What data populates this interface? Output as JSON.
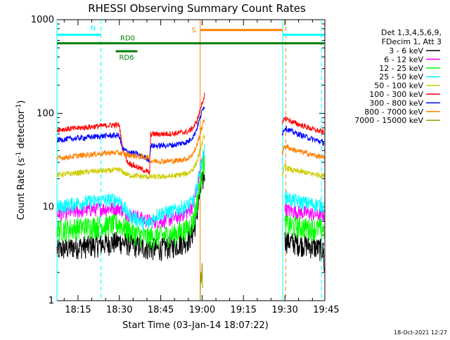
{
  "chart_data": {
    "type": "line",
    "title": "RHESSI Observing Summary Count Rates",
    "xlabel": "Start Time (03-Jan-14 18:07:22)",
    "ylabel_main": "Count Rate (s",
    "ylabel_sup1": "-1",
    "ylabel_mid": " detector",
    "ylabel_sup2": "-1",
    "ylabel_end": ")",
    "y_scale": "log",
    "ylim": [
      1,
      1000
    ],
    "y_ticks": [
      {
        "value": 1,
        "label": "1"
      },
      {
        "value": 10,
        "label": "10"
      },
      {
        "value": 100,
        "label": "100"
      },
      {
        "value": 1000,
        "label": "1000"
      }
    ],
    "x_range_minutes": [
      7.37,
      104.5
    ],
    "x_ticks": [
      {
        "minute": 15,
        "label": "18:15"
      },
      {
        "minute": 30,
        "label": "18:30"
      },
      {
        "minute": 45,
        "label": "18:45"
      },
      {
        "minute": 60,
        "label": "19:00"
      },
      {
        "minute": 75,
        "label": "19:15"
      },
      {
        "minute": 90,
        "label": "19:30"
      },
      {
        "minute": 105,
        "label": "19:45"
      }
    ],
    "legend_header": [
      "Det 1,3,4,5,6,9,",
      "FDecim 1, Att 3"
    ],
    "legend_position": "right",
    "series": [
      {
        "name": "3 - 6 keV",
        "color": "#000000",
        "segments": [
          [
            [
              7.4,
              3.5
            ],
            [
              14,
              3.8
            ],
            [
              20,
              3.9
            ],
            [
              27,
              4.2
            ],
            [
              30,
              4.3
            ],
            [
              33,
              4.1
            ],
            [
              36,
              3.9
            ],
            [
              40,
              3.7
            ],
            [
              44,
              3.6
            ],
            [
              50,
              3.9
            ],
            [
              55,
              4.5
            ],
            [
              57,
              5.6
            ],
            [
              58,
              8.0
            ],
            [
              59,
              13
            ],
            [
              60,
              18
            ],
            [
              61,
              24
            ]
          ],
          [
            [
              90,
              4.5
            ],
            [
              93,
              4.2
            ],
            [
              97,
              4.0
            ],
            [
              100,
              3.8
            ],
            [
              103,
              3.6
            ],
            [
              104,
              3.4
            ],
            [
              104.4,
              2.0
            ]
          ]
        ]
      },
      {
        "name": "6 - 12 keV",
        "color": "#ff00ff",
        "segments": [
          [
            [
              7.4,
              8.5
            ],
            [
              14,
              9.0
            ],
            [
              20,
              9.5
            ],
            [
              27,
              9.7
            ],
            [
              30,
              9.8
            ],
            [
              33,
              8.5
            ],
            [
              36,
              8.0
            ],
            [
              40,
              7.2
            ],
            [
              44,
              7.0
            ],
            [
              50,
              7.6
            ],
            [
              55,
              9.0
            ],
            [
              57,
              11
            ],
            [
              58,
              15
            ],
            [
              59,
              22
            ],
            [
              60,
              30
            ],
            [
              61,
              40
            ]
          ],
          [
            [
              90,
              9.5
            ],
            [
              93,
              9.0
            ],
            [
              97,
              8.7
            ],
            [
              100,
              8.5
            ],
            [
              103,
              8.3
            ],
            [
              104.3,
              8.2
            ]
          ]
        ]
      },
      {
        "name": "12 - 25 keV",
        "color": "#00ff00",
        "segments": [
          [
            [
              7.4,
              5.8
            ],
            [
              14,
              6.0
            ],
            [
              20,
              6.3
            ],
            [
              27,
              6.5
            ],
            [
              30,
              6.6
            ],
            [
              33,
              5.8
            ],
            [
              36,
              5.2
            ],
            [
              40,
              4.8
            ],
            [
              44,
              4.9
            ],
            [
              50,
              5.2
            ],
            [
              55,
              6.0
            ],
            [
              57,
              7.5
            ],
            [
              58,
              11
            ],
            [
              59,
              16
            ],
            [
              60,
              24
            ],
            [
              61,
              33
            ]
          ],
          [
            [
              90,
              6.6
            ],
            [
              93,
              6.3
            ],
            [
              97,
              6.1
            ],
            [
              100,
              6.0
            ],
            [
              103,
              5.9
            ],
            [
              104.3,
              5.8
            ]
          ]
        ]
      },
      {
        "name": "25 - 50 keV",
        "color": "#00ffff",
        "segments": [
          [
            [
              7.4,
              10
            ],
            [
              14,
              11
            ],
            [
              20,
              11.5
            ],
            [
              27,
              12
            ],
            [
              30,
              12
            ],
            [
              33,
              8.5
            ],
            [
              36,
              7.5
            ],
            [
              40,
              6.5
            ],
            [
              44,
              8.5
            ],
            [
              50,
              9.2
            ],
            [
              55,
              10.5
            ],
            [
              57,
              12
            ],
            [
              58,
              16
            ],
            [
              59,
              23
            ],
            [
              60,
              32
            ],
            [
              61,
              42
            ]
          ],
          [
            [
              90,
              13
            ],
            [
              93,
              11.8
            ],
            [
              97,
              11.2
            ],
            [
              100,
              10.8
            ],
            [
              103,
              10.5
            ],
            [
              104.3,
              10.3
            ]
          ]
        ]
      },
      {
        "name": "50 - 100 keV",
        "color": "#cccc00",
        "segments": [
          [
            [
              7.4,
              22
            ],
            [
              14,
              23
            ],
            [
              20,
              24
            ],
            [
              27,
              24.5
            ],
            [
              30,
              25
            ],
            [
              33,
              22
            ],
            [
              36,
              21.5
            ],
            [
              40,
              21
            ],
            [
              44,
              21
            ],
            [
              50,
              21.5
            ],
            [
              55,
              23
            ],
            [
              57,
              26
            ],
            [
              58,
              30
            ],
            [
              59,
              38
            ],
            [
              60,
              48
            ],
            [
              61,
              60
            ]
          ],
          [
            [
              89,
              22
            ],
            [
              90,
              27
            ],
            [
              93,
              24.5
            ],
            [
              97,
              23.5
            ],
            [
              100,
              22.5
            ],
            [
              103,
              22
            ],
            [
              104.3,
              21.5
            ]
          ]
        ]
      },
      {
        "name": "100 - 300 keV",
        "color": "#ff0000",
        "segments": [
          [
            [
              7.4,
              67
            ],
            [
              14,
              69
            ],
            [
              20,
              72
            ],
            [
              27,
              75
            ],
            [
              30,
              75
            ],
            [
              31,
              45
            ],
            [
              33,
              30
            ],
            [
              36,
              27
            ],
            [
              40,
              24
            ],
            [
              41,
              23
            ],
            [
              41.3,
              60
            ],
            [
              44,
              60
            ],
            [
              50,
              61
            ],
            [
              55,
              64
            ],
            [
              57,
              72
            ],
            [
              58,
              82
            ],
            [
              59,
              100
            ],
            [
              60,
              130
            ],
            [
              61,
              160
            ]
          ],
          [
            [
              89,
              75
            ],
            [
              90,
              90
            ],
            [
              93,
              80
            ],
            [
              97,
              73
            ],
            [
              100,
              68
            ],
            [
              103,
              64
            ],
            [
              104.3,
              62
            ]
          ]
        ]
      },
      {
        "name": "300 - 800 keV",
        "color": "#0000ff",
        "segments": [
          [
            [
              7.4,
              52
            ],
            [
              14,
              54
            ],
            [
              20,
              56
            ],
            [
              27,
              58
            ],
            [
              30,
              58
            ],
            [
              31,
              42
            ],
            [
              33,
              39
            ],
            [
              36,
              37
            ],
            [
              40,
              33
            ],
            [
              41,
              32
            ],
            [
              41.3,
              45
            ],
            [
              44,
              45
            ],
            [
              50,
              46
            ],
            [
              55,
              50
            ],
            [
              57,
              58
            ],
            [
              58,
              68
            ],
            [
              59,
              85
            ],
            [
              60,
              105
            ],
            [
              61,
              125
            ]
          ],
          [
            [
              89,
              60
            ],
            [
              90,
              70
            ],
            [
              93,
              63
            ],
            [
              97,
              57
            ],
            [
              100,
              53
            ],
            [
              103,
              50
            ],
            [
              104.3,
              48
            ]
          ]
        ]
      },
      {
        "name": "800 - 7000 keV",
        "color": "#ff8000",
        "segments": [
          [
            [
              7.4,
              33
            ],
            [
              14,
              35
            ],
            [
              20,
              36.5
            ],
            [
              27,
              38
            ],
            [
              30,
              38
            ],
            [
              31,
              37
            ],
            [
              36,
              35
            ],
            [
              40,
              34
            ],
            [
              41,
              34
            ],
            [
              41.3,
              31
            ],
            [
              44,
              31
            ],
            [
              50,
              31
            ],
            [
              55,
              33
            ],
            [
              57,
              38
            ],
            [
              58,
              45
            ],
            [
              59,
              57
            ],
            [
              60,
              72
            ],
            [
              61,
              88
            ]
          ],
          [
            [
              89,
              38
            ],
            [
              90,
              45
            ],
            [
              93,
              41
            ],
            [
              97,
              38
            ],
            [
              100,
              36
            ],
            [
              103,
              34.5
            ],
            [
              104.3,
              33
            ]
          ]
        ]
      },
      {
        "name": "7000 - 15000 keV",
        "color": "#999900",
        "segments": [
          [
            [
              59.3,
              1.0
            ],
            [
              59.5,
              2.2
            ],
            [
              59.7,
              1.4
            ],
            [
              60.0,
              2.8
            ],
            [
              60.2,
              1.0
            ]
          ]
        ]
      }
    ],
    "cyan_vlines_minutes": [
      7.37,
      89.2
    ],
    "cyan_dashed_vlines_minutes": [
      23.3,
      103.3
    ],
    "orange_vline_minutes": [
      59.3
    ],
    "orange_dashed_vline_minutes": [
      90.3
    ],
    "flags": {
      "N": {
        "label": "N",
        "color": "#00ffff",
        "segments": [
          [
            7.4,
            23.3
          ],
          [
            89.2,
            104.3
          ]
        ],
        "value": 690
      },
      "RD0": {
        "label": "RD0",
        "color": "#008000",
        "segments": [
          [
            7.4,
            104.3
          ]
        ],
        "value": 560
      },
      "RD6": {
        "label": "RD6",
        "color": "#008000",
        "segments": [
          [
            28.7,
            36.5
          ]
        ],
        "value": 460
      },
      "S": {
        "label": "S",
        "color": "#ff8000",
        "segments": [
          [
            59.3,
            89.2
          ]
        ],
        "value": 775
      }
    },
    "timestamp": "18-Oct-2021 12:27"
  }
}
